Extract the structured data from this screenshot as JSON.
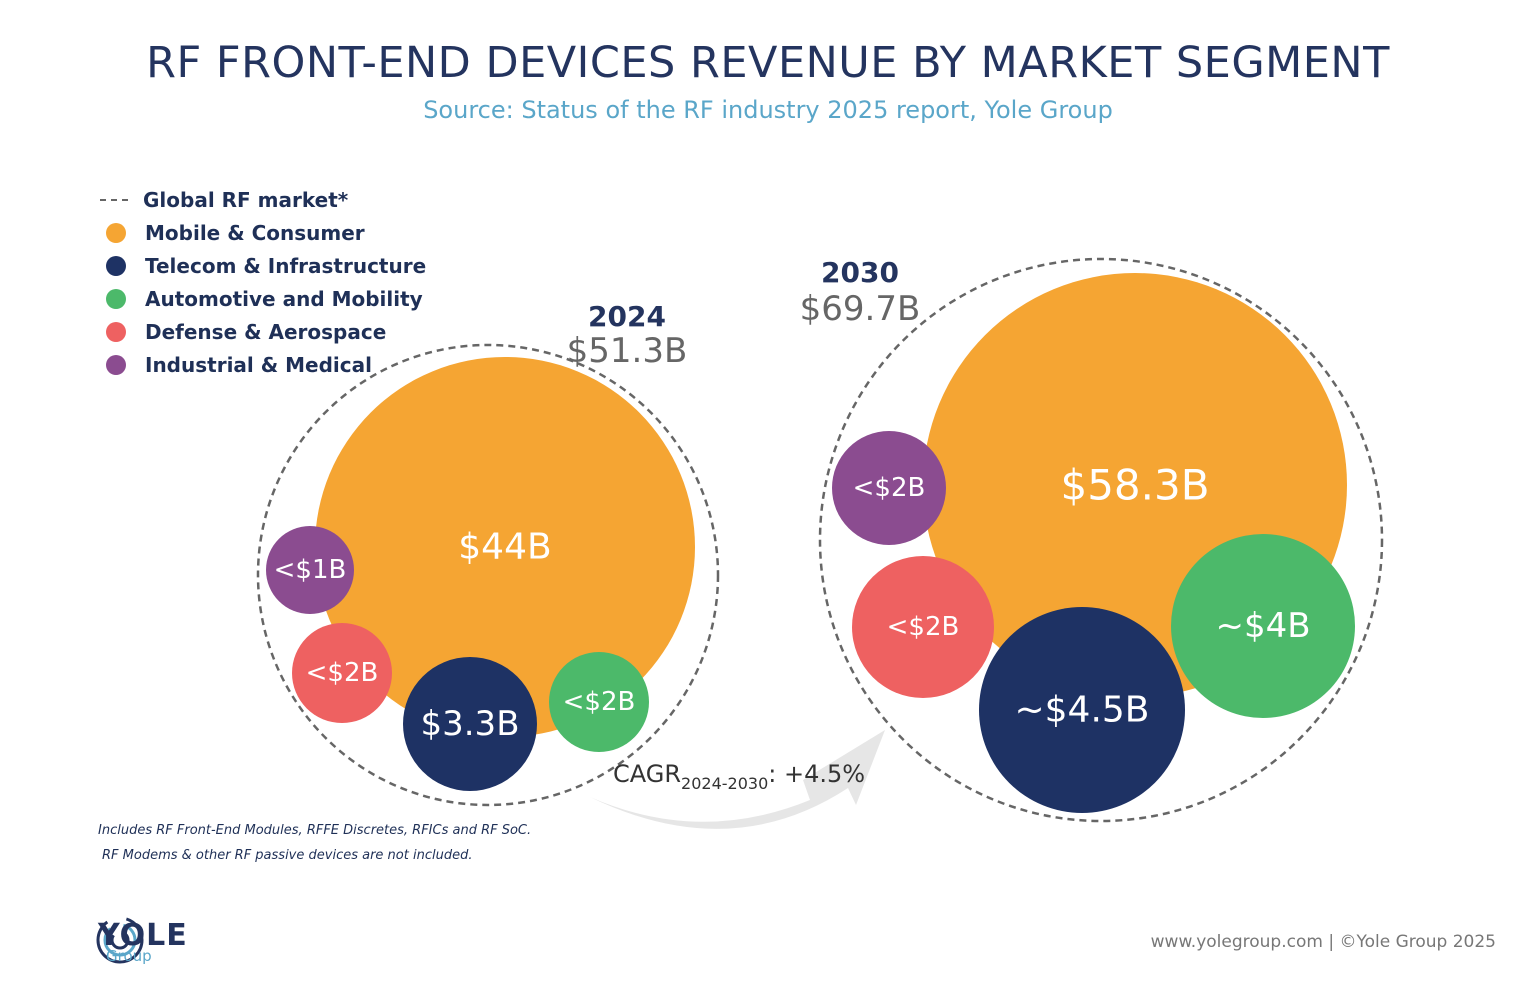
{
  "title": "RF FRONT-END DEVICES REVENUE BY MARKET SEGMENT",
  "subtitle": "Source: Status of the RF industry 2025 report, Yole Group",
  "legend": [
    {
      "label": "Global RF market*",
      "marker": "dashed-line",
      "color": "#666666"
    },
    {
      "label": "Mobile & Consumer",
      "marker": "dot",
      "color": "#f5a533"
    },
    {
      "label": "Telecom & Infrastructure",
      "marker": "dot",
      "color": "#1e3264"
    },
    {
      "label": "Automotive and Mobility",
      "marker": "dot",
      "color": "#4cb96a"
    },
    {
      "label": "Defense & Aerospace",
      "marker": "dot",
      "color": "#ee6161"
    },
    {
      "label": "Industrial & Medical",
      "marker": "dot",
      "color": "#8b4c90"
    }
  ],
  "chart_data": {
    "type": "bubble",
    "years": [
      {
        "year": "2024",
        "total_label": "$51.3B",
        "segments": [
          {
            "segment": "Mobile & Consumer",
            "value": 44,
            "label": "$44B"
          },
          {
            "segment": "Telecom & Infrastructure",
            "value": 3.3,
            "label": "$3.3B"
          },
          {
            "segment": "Automotive and Mobility",
            "value": 2,
            "label": "<$2B"
          },
          {
            "segment": "Defense & Aerospace",
            "value": 2,
            "label": "<$2B"
          },
          {
            "segment": "Industrial & Medical",
            "value": 1,
            "label": "<$1B"
          }
        ]
      },
      {
        "year": "2030",
        "total_label": "$69.7B",
        "segments": [
          {
            "segment": "Mobile & Consumer",
            "value": 58.3,
            "label": "$58.3B"
          },
          {
            "segment": "Telecom & Infrastructure",
            "value": 4.5,
            "label": "~$4.5B"
          },
          {
            "segment": "Automotive and Mobility",
            "value": 4,
            "label": "~$4B"
          },
          {
            "segment": "Defense & Aerospace",
            "value": 2,
            "label": "<$2B"
          },
          {
            "segment": "Industrial & Medical",
            "value": 2,
            "label": "<$2B"
          }
        ]
      }
    ],
    "cagr": {
      "prefix": "CAGR",
      "period": "2024-2030",
      "value": ": +4.5%"
    }
  },
  "footnotes": [
    "Includes RF Front-End Modules, RFFE Discretes, RFICs and RF SoC.",
    "RF Modems & other RF passive devices are not included."
  ],
  "logo": {
    "name": "YOLE",
    "sub": "Group",
    "icon": "yole-swirl-icon"
  },
  "credit": "www.yolegroup.com | ©Yole Group 2025"
}
